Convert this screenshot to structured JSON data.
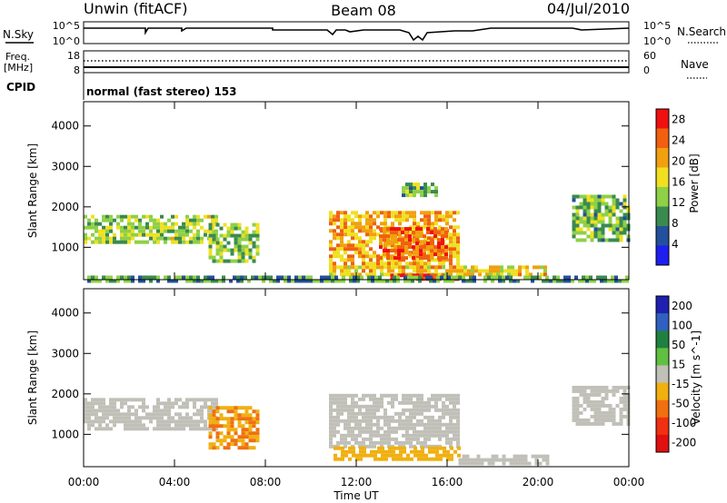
{
  "header": {
    "station": "Unwin (fitACF)",
    "beam": "Beam 08",
    "date": "04/Jul/2010"
  },
  "nsky_panel": {
    "left_label": "N.Sky",
    "left_ticks": [
      "10^5",
      "10^0"
    ],
    "right_ticks": [
      "10^5",
      "10^0"
    ],
    "right_label": "N.Search"
  },
  "freq_panel": {
    "left_label": "Freq.",
    "left_unit": "[MHz]",
    "left_ticks": [
      "18",
      "8"
    ],
    "right_ticks": [
      "60",
      "0"
    ],
    "right_label": "Nave",
    "cpid_label": "CPID",
    "cpid_text": "normal (fast stereo) 153"
  },
  "colors": {
    "power": [
      "#1e1ef0",
      "#23509c",
      "#3a8a50",
      "#8ed046",
      "#f0e020",
      "#f0a010",
      "#f06010",
      "#f01010"
    ],
    "velocity": [
      "#2020b0",
      "#3060c0",
      "#208040",
      "#60c040",
      "#c0c0b8",
      "#f0b010",
      "#f07010",
      "#f03010",
      "#e01010"
    ]
  },
  "x_axis": {
    "label": "Time UT",
    "ticks": [
      "00:00",
      "04:00",
      "08:00",
      "12:00",
      "16:00",
      "20:00",
      "00:00"
    ]
  },
  "chart_data": [
    {
      "type": "heatmap",
      "title": "Power",
      "ylabel": "Slant Range [km]",
      "y_ticks": [
        "1000",
        "2000",
        "3000",
        "4000"
      ],
      "ylim": [
        200,
        4600
      ],
      "xlim_hours": [
        0,
        24
      ],
      "colorbar": {
        "label": "Power [dB]",
        "ticks": [
          "4",
          "8",
          "12",
          "16",
          "20",
          "24",
          "28"
        ],
        "range": [
          0,
          30
        ]
      },
      "regions": [
        {
          "t0": 0.0,
          "t1": 5.8,
          "r0": 1100,
          "r1": 1800,
          "value": 14
        },
        {
          "t0": 5.5,
          "t1": 7.6,
          "r0": 700,
          "r1": 1600,
          "value": 13
        },
        {
          "t0": 10.8,
          "t1": 16.5,
          "r0": 500,
          "r1": 1900,
          "value": 20
        },
        {
          "t0": 13.0,
          "t1": 16.0,
          "r0": 700,
          "r1": 1500,
          "value": 24
        },
        {
          "t0": 10.8,
          "t1": 20.4,
          "r0": 300,
          "r1": 550,
          "value": 18
        },
        {
          "t0": 13.5,
          "t1": 16.5,
          "r0": 250,
          "r1": 350,
          "value": 28
        },
        {
          "t0": 14.0,
          "t1": 15.5,
          "r0": 2300,
          "r1": 2600,
          "value": 12
        },
        {
          "t0": 21.5,
          "t1": 24.0,
          "r0": 1200,
          "r1": 2300,
          "value": 12
        },
        {
          "t0": 0.0,
          "t1": 24.0,
          "r0": 200,
          "r1": 300,
          "value": 10
        }
      ]
    },
    {
      "type": "heatmap",
      "title": "Velocity",
      "ylabel": "Slant Range [km]",
      "y_ticks": [
        "1000",
        "2000",
        "3000",
        "4000"
      ],
      "ylim": [
        200,
        4600
      ],
      "xlim_hours": [
        0,
        24
      ],
      "colorbar": {
        "label": "Velocity [m s^-1]",
        "ticks": [
          "200",
          "100",
          "50",
          "15",
          "-15",
          "-50",
          "-100",
          "-200"
        ],
        "range": [
          -250,
          250
        ]
      },
      "regions": [
        {
          "t0": 0.0,
          "t1": 5.8,
          "r0": 1100,
          "r1": 1900,
          "value": 0
        },
        {
          "t0": 5.5,
          "t1": 7.6,
          "r0": 700,
          "r1": 1700,
          "value": -80
        },
        {
          "t0": 10.8,
          "t1": 16.5,
          "r0": 700,
          "r1": 2000,
          "value": 0
        },
        {
          "t0": 11.0,
          "t1": 16.5,
          "r0": 350,
          "r1": 700,
          "value": -50
        },
        {
          "t0": 16.5,
          "t1": 20.5,
          "r0": 250,
          "r1": 500,
          "value": 0
        },
        {
          "t0": 21.5,
          "t1": 24.0,
          "r0": 1300,
          "r1": 2200,
          "value": 0
        }
      ]
    }
  ]
}
